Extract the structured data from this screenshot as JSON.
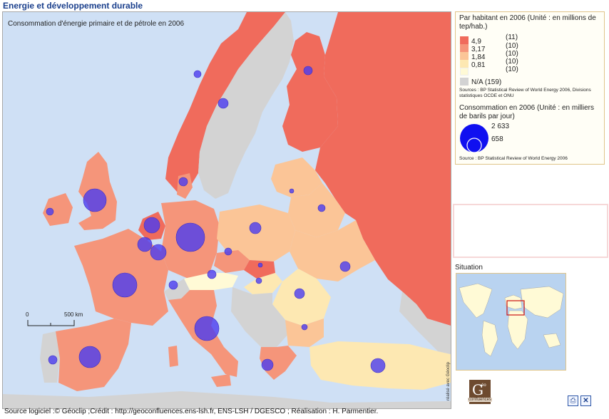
{
  "app": {
    "title": "Energie et développement durable"
  },
  "map": {
    "title": "Consommation d'énergie primaire et de pétrole en 2006",
    "sea_color": "#cfe0f5",
    "scale": {
      "start": "0",
      "end": "500 km"
    }
  },
  "choropleth": {
    "title": "Par habitant en 2006 (Unité : en millions de tep/hab.)",
    "classes": [
      {
        "value": "4,9",
        "count": "(11)",
        "color": "#f06b5c"
      },
      {
        "value": "3,17",
        "count": "(10)",
        "color": "#f5957a"
      },
      {
        "value": "1,84",
        "count": "(10)",
        "color": "#fbc597"
      },
      {
        "value": "0,81",
        "count": "(10)",
        "color": "#fde8b2"
      },
      {
        "value": "",
        "count": "(10)",
        "color": "#fffad6"
      }
    ],
    "na": {
      "label": "N/A (159)",
      "color": "#d3d3d3"
    },
    "source": "Sources : BP Statistical Review of World Energy 2006, Divisions statistiques OCDE et ONU"
  },
  "symbols": {
    "title": "Consommation en 2006 (Unité : en milliers de barils par jour)",
    "values": [
      "2 633",
      "658"
    ],
    "color": "#4b3cf0",
    "source": "Source : BP Statistical Review of World Energy 2006"
  },
  "situation": {
    "label": "Situation"
  },
  "credit": {
    "vertical": "réalisé avec Géoclip",
    "logo_letter": "G",
    "logo_small": "éo",
    "logo_word": "confluences"
  },
  "toolbar": {
    "print_icon": "printer-icon",
    "close_icon": "close-icon"
  },
  "footer": {
    "text": "Source logiciel :© Géoclip ;Crédit : http://geoconfluences.ens-lsh.fr, ENS-LSH / DGESCO ; Réalisation : H. Parmentier."
  }
}
